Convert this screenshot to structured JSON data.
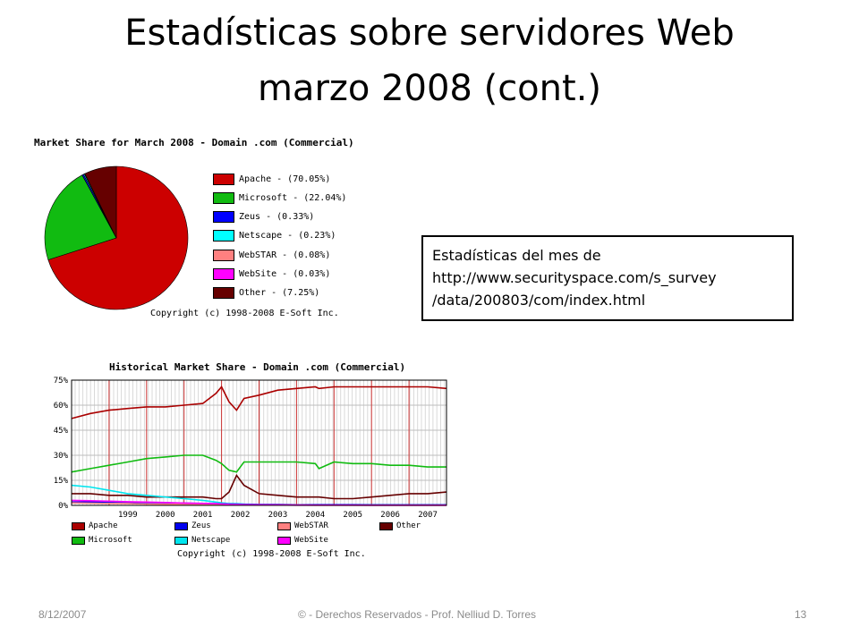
{
  "slide": {
    "title_line1": "Estadísticas sobre servidores Web",
    "title_line2": "marzo 2008  (cont.)",
    "note_lines": [
      "Estadísticas del mes de",
      "http://www.securityspace.com/s_survey",
      "/data/200803/com/index.html"
    ],
    "footer_date": "8/12/2007",
    "footer_center": "© - Derechos Reservados  - Prof. Nelliud D. Torres",
    "footer_page": "13"
  },
  "chart_data": [
    {
      "type": "pie",
      "title": "Market Share for March 2008 - Domain .com (Commercial)",
      "legend_position": "right",
      "slices": [
        {
          "label": "Apache - (70.05%)",
          "value": 70.05,
          "color": "#cc0000"
        },
        {
          "label": "Microsoft - (22.04%)",
          "value": 22.04,
          "color": "#11bb11"
        },
        {
          "label": "Zeus - (0.33%)",
          "value": 0.33,
          "color": "#0000ff"
        },
        {
          "label": "Netscape - (0.23%)",
          "value": 0.23,
          "color": "#00ffff"
        },
        {
          "label": "WebSTAR - (0.08%)",
          "value": 0.08,
          "color": "#ff8080"
        },
        {
          "label": "WebSite - (0.03%)",
          "value": 0.03,
          "color": "#ff00ff"
        },
        {
          "label": "Other - (7.25%)",
          "value": 7.25,
          "color": "#660000"
        }
      ],
      "copyright": "Copyright (c) 1998-2008 E-Soft Inc."
    },
    {
      "type": "line",
      "title": "Historical Market Share - Domain .com (Commercial)",
      "y_ticks": [
        "0%",
        "15%",
        "30%",
        "45%",
        "60%",
        "75%"
      ],
      "ylim": [
        0,
        75
      ],
      "x_ticks": [
        "1999",
        "2000",
        "2001",
        "2002",
        "2003",
        "2004",
        "2005",
        "2006",
        "2007"
      ],
      "xlim": [
        1998.0,
        2008.0
      ],
      "grid": true,
      "legend_position": "bottom",
      "x": [
        1998.0,
        1998.5,
        1999.0,
        1999.5,
        2000.0,
        2000.5,
        2001.0,
        2001.5,
        2001.85,
        2002.0,
        2002.2,
        2002.4,
        2002.6,
        2003.0,
        2003.5,
        2004.0,
        2004.5,
        2004.6,
        2005.0,
        2005.5,
        2006.0,
        2006.5,
        2007.0,
        2007.5,
        2008.0
      ],
      "series": [
        {
          "name": "Apache",
          "color": "#aa0000",
          "values": [
            52,
            55,
            57,
            58,
            59,
            59,
            60,
            61,
            67,
            71,
            62,
            57,
            64,
            66,
            69,
            70,
            71,
            70,
            71,
            71,
            71,
            71,
            71,
            71,
            70
          ]
        },
        {
          "name": "Microsoft",
          "color": "#11bb11",
          "values": [
            20,
            22,
            24,
            26,
            28,
            29,
            30,
            30,
            27,
            25,
            21,
            20,
            26,
            26,
            26,
            26,
            25,
            22,
            26,
            25,
            25,
            24,
            24,
            23,
            23
          ]
        },
        {
          "name": "Other",
          "color": "#660000",
          "values": [
            7,
            7,
            6,
            6,
            5,
            5,
            5,
            5,
            4,
            4,
            8,
            18,
            12,
            7,
            6,
            5,
            5,
            5,
            4,
            4,
            5,
            6,
            7,
            7,
            8
          ]
        },
        {
          "name": "Netscape",
          "color": "#00e5ee",
          "values": [
            12,
            11,
            9,
            7,
            6,
            5,
            4,
            3,
            2,
            1.5,
            1,
            1,
            0.8,
            0.6,
            0.5,
            0.4,
            0.4,
            0.3,
            0.3,
            0.3,
            0.3,
            0.2,
            0.2,
            0.2,
            0.2
          ]
        },
        {
          "name": "Zeus",
          "color": "#0000ee",
          "values": [
            2,
            2,
            2,
            1.8,
            1.6,
            1.5,
            1.3,
            1.2,
            1.0,
            0.9,
            0.8,
            0.7,
            0.6,
            0.5,
            0.5,
            0.4,
            0.4,
            0.4,
            0.4,
            0.4,
            0.3,
            0.3,
            0.3,
            0.3,
            0.3
          ]
        },
        {
          "name": "WebSTAR",
          "color": "#ff8080",
          "values": [
            1.5,
            1.3,
            1.1,
            1.0,
            0.8,
            0.7,
            0.6,
            0.5,
            0.4,
            0.4,
            0.3,
            0.3,
            0.3,
            0.2,
            0.2,
            0.2,
            0.1,
            0.1,
            0.1,
            0.1,
            0.1,
            0.1,
            0.1,
            0.1,
            0.1
          ]
        },
        {
          "name": "WebSite",
          "color": "#ff00ff",
          "values": [
            3,
            2.8,
            2.5,
            2.2,
            2.0,
            1.7,
            1.4,
            1.2,
            1.0,
            0.8,
            0.6,
            0.5,
            0.4,
            0.3,
            0.2,
            0.1,
            0.1,
            0.1,
            0.1,
            0.1,
            0.05,
            0.05,
            0.03,
            0.03,
            0.03
          ]
        }
      ],
      "legend_items": [
        {
          "label": "Apache",
          "color": "#aa0000"
        },
        {
          "label": "Zeus",
          "color": "#0000ee"
        },
        {
          "label": "WebSTAR",
          "color": "#ff8080"
        },
        {
          "label": "Other",
          "color": "#660000"
        },
        {
          "label": "Microsoft",
          "color": "#11bb11"
        },
        {
          "label": "Netscape",
          "color": "#00e5ee"
        },
        {
          "label": "WebSite",
          "color": "#ff00ff"
        }
      ],
      "copyright": "Copyright (c) 1998-2008 E-Soft Inc."
    }
  ]
}
